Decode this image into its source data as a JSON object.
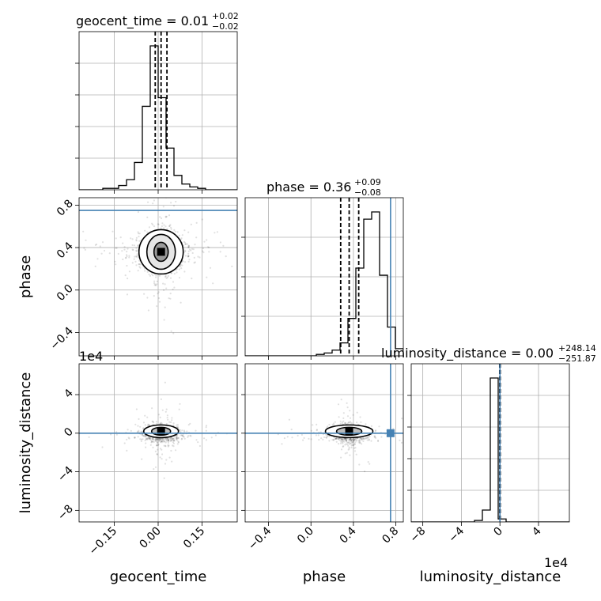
{
  "figure": {
    "truth_color": "#4682b4",
    "panel_titles": {
      "geocent_time": {
        "prefix": "geocent_time = ",
        "value": "0.01",
        "plus": "+0.02",
        "minus": "−0.02"
      },
      "phase": {
        "prefix": "phase = ",
        "value": "0.36",
        "plus": "+0.09",
        "minus": "−0.08"
      },
      "luminosity_distance": {
        "prefix": "luminosity_distance = ",
        "value": "0.00",
        "plus": "+248.14",
        "minus": "−251.87"
      }
    },
    "axis_labels": {
      "x_geocent_time": "geocent_time",
      "x_phase": "phase",
      "x_luminosity_distance": "luminosity_distance",
      "y_phase": "phase",
      "y_luminosity_distance": "luminosity_distance"
    },
    "offset_labels": {
      "y_luminosity_distance": "1e4",
      "x_luminosity_distance": "1e4"
    }
  },
  "chart_data": {
    "type": "corner",
    "parameters": [
      "geocent_time",
      "phase",
      "luminosity_distance"
    ],
    "truths": {
      "geocent_time": null,
      "phase": 0.75,
      "luminosity_distance": 0
    },
    "quantiles": {
      "geocent_time": [
        -0.01,
        0.01,
        0.03
      ],
      "phase": [
        0.28,
        0.36,
        0.45
      ],
      "luminosity_distance": [
        -252,
        0,
        248
      ]
    },
    "ranges": {
      "geocent_time": [
        -0.27,
        0.27
      ],
      "phase": [
        -0.62,
        0.87
      ],
      "luminosity_distance": [
        -92000,
        72000
      ]
    },
    "ticks": {
      "geocent_time": {
        "values": [
          -0.15,
          0.0,
          0.15
        ],
        "labels": [
          "−0.15",
          "0.00",
          "0.15"
        ]
      },
      "phase": {
        "values": [
          -0.4,
          0.0,
          0.4,
          0.8
        ],
        "labels": [
          "−0.4",
          "0.0",
          "0.4",
          "0.8"
        ]
      },
      "luminosity_distance": {
        "values": [
          -80000,
          -40000,
          0,
          40000
        ],
        "labels": [
          "−8",
          "−4",
          "0",
          "4"
        ]
      }
    },
    "histograms": {
      "geocent_time": {
        "range": [
          -0.27,
          0.27
        ],
        "counts": [
          0,
          0,
          0,
          1,
          1,
          3,
          7,
          19,
          58,
          100,
          64,
          29,
          10,
          4,
          2,
          1,
          0,
          0,
          0,
          0
        ]
      },
      "phase": {
        "range": [
          -0.62,
          0.87
        ],
        "counts": [
          0,
          0,
          0,
          0,
          0,
          0,
          0,
          0,
          0,
          1,
          2,
          4,
          9,
          26,
          61,
          95,
          100,
          56,
          20,
          5
        ]
      },
      "luminosity_distance": {
        "range": [
          -92000,
          72000
        ],
        "counts": [
          0,
          0,
          0,
          0,
          0,
          0,
          0,
          0,
          1,
          8,
          97,
          2,
          0,
          0,
          0,
          0,
          0,
          0,
          0,
          0
        ]
      }
    },
    "grid": true
  }
}
